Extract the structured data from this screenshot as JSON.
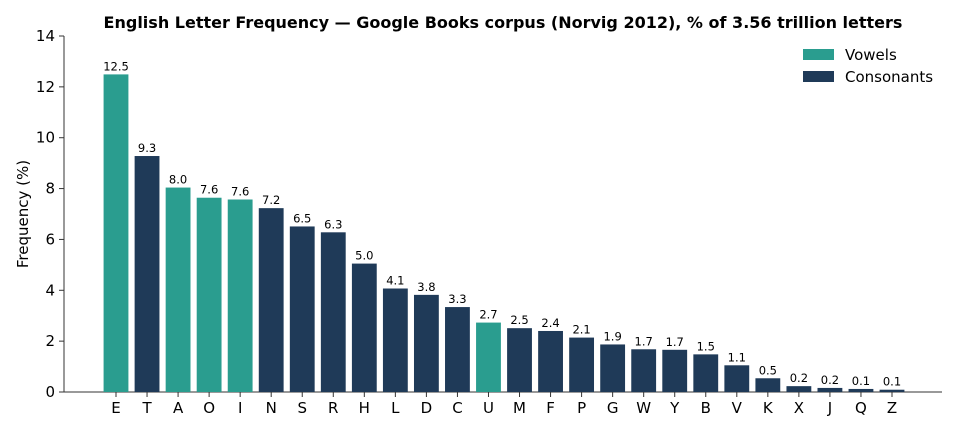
{
  "chart_data": {
    "type": "bar",
    "title": "English Letter Frequency — Google Books corpus (Norvig 2012), % of 3.56 trillion letters",
    "xlabel": "",
    "ylabel": "Frequency (%)",
    "ylim": [
      0,
      14
    ],
    "yticks": [
      0,
      2,
      4,
      6,
      8,
      10,
      12,
      14
    ],
    "grid": false,
    "legend_position": "top-right",
    "categories": [
      "E",
      "T",
      "A",
      "O",
      "I",
      "N",
      "S",
      "R",
      "H",
      "L",
      "D",
      "C",
      "U",
      "M",
      "F",
      "P",
      "G",
      "W",
      "Y",
      "B",
      "V",
      "K",
      "X",
      "J",
      "Q",
      "Z"
    ],
    "values": [
      12.49,
      9.28,
      8.04,
      7.64,
      7.57,
      7.23,
      6.51,
      6.28,
      5.05,
      4.07,
      3.82,
      3.34,
      2.73,
      2.51,
      2.4,
      2.14,
      1.87,
      1.68,
      1.66,
      1.48,
      1.05,
      0.54,
      0.23,
      0.16,
      0.12,
      0.09
    ],
    "data_labels": [
      "12.5",
      "9.3",
      "8.0",
      "7.6",
      "7.6",
      "7.2",
      "6.5",
      "6.3",
      "5.0",
      "4.1",
      "3.8",
      "3.3",
      "2.7",
      "2.5",
      "2.4",
      "2.1",
      "1.9",
      "1.7",
      "1.7",
      "1.5",
      "1.1",
      "0.5",
      "0.2",
      "0.2",
      "0.1",
      "0.1"
    ],
    "groups": [
      "Vowels",
      "Consonants",
      "Vowels",
      "Vowels",
      "Vowels",
      "Consonants",
      "Consonants",
      "Consonants",
      "Consonants",
      "Consonants",
      "Consonants",
      "Consonants",
      "Vowels",
      "Consonants",
      "Consonants",
      "Consonants",
      "Consonants",
      "Consonants",
      "Consonants",
      "Consonants",
      "Consonants",
      "Consonants",
      "Consonants",
      "Consonants",
      "Consonants",
      "Consonants"
    ],
    "legend": [
      {
        "name": "Vowels",
        "color": "#2a9d8f"
      },
      {
        "name": "Consonants",
        "color": "#1f3a58"
      }
    ]
  }
}
